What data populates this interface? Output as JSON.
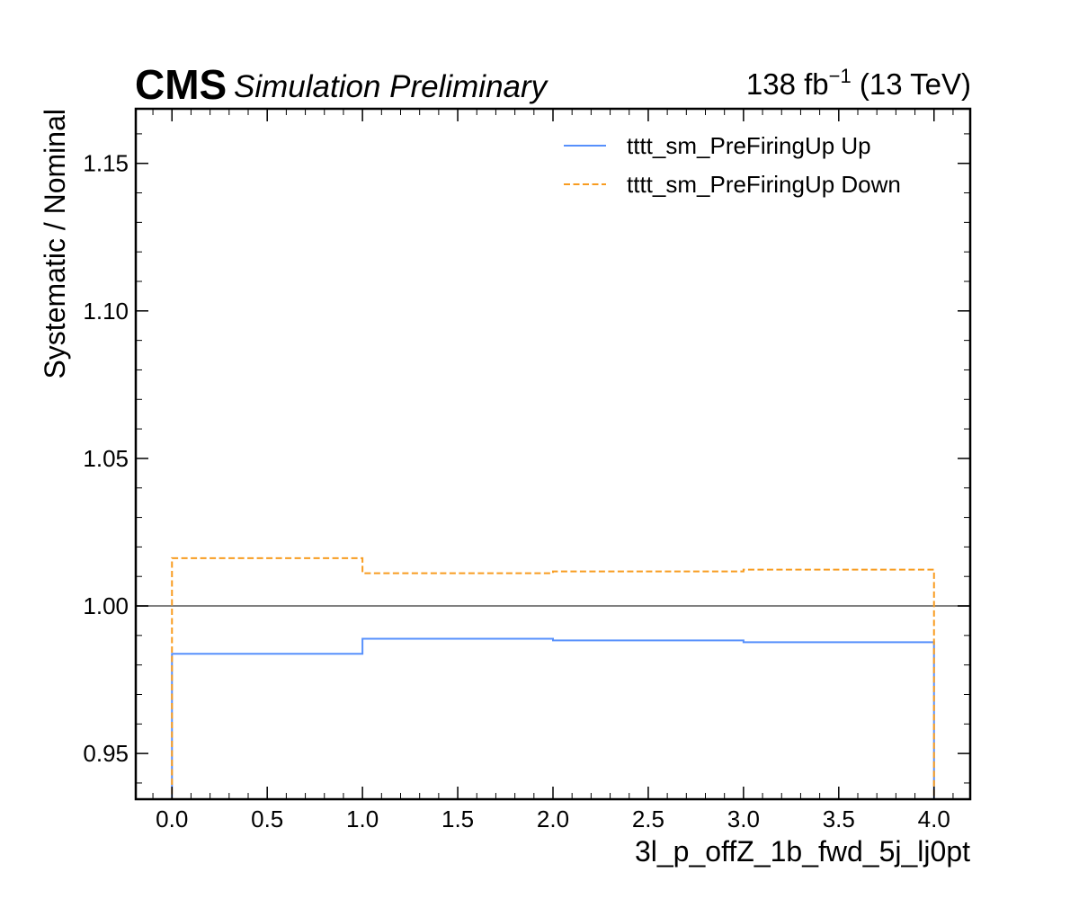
{
  "header": {
    "experiment": "CMS",
    "subtitle": "Simulation Preliminary",
    "lumi_value": "138 fb",
    "lumi_exponent": "−1",
    "lumi_energy": " (13 TeV)"
  },
  "chart_data": {
    "type": "line",
    "drawstyle": "step",
    "xlabel": "3l_p_offZ_1b_fwd_5j_lj0pt",
    "ylabel": "Systematic / Nominal",
    "xlim": [
      -0.19,
      4.19
    ],
    "ylim": [
      0.9345,
      1.1685
    ],
    "x_ticks": [
      0.0,
      0.5,
      1.0,
      1.5,
      2.0,
      2.5,
      3.0,
      3.5,
      4.0
    ],
    "x_tick_labels": [
      "0.0",
      "0.5",
      "1.0",
      "1.5",
      "2.0",
      "2.5",
      "3.0",
      "3.5",
      "4.0"
    ],
    "y_ticks": [
      0.95,
      1.0,
      1.05,
      1.1,
      1.15
    ],
    "y_tick_labels": [
      "0.95",
      "1.00",
      "1.05",
      "1.10",
      "1.15"
    ],
    "reference_line": 1.0,
    "bin_edges": [
      0,
      1,
      2,
      3,
      4
    ],
    "series": [
      {
        "name": "tttt_sm_PreFiringUp Up",
        "values": [
          0.9838,
          0.9889,
          0.9883,
          0.9877
        ],
        "color": "#5790fc",
        "style": "solid"
      },
      {
        "name": "tttt_sm_PreFiringUp Down",
        "values": [
          1.0162,
          1.0111,
          1.0117,
          1.0123
        ],
        "color": "#f89c20",
        "style": "dashed"
      }
    ],
    "legend_position": "top-right",
    "grid": false
  }
}
